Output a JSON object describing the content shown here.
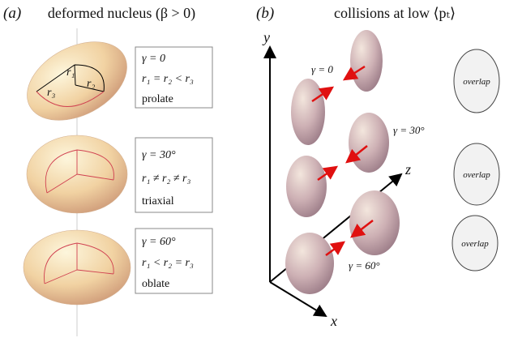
{
  "panel_a": {
    "label": "(a)",
    "title": "deformed nucleus (β > 0)",
    "radius_labels": [
      "r₁",
      "r₂",
      "r₃"
    ],
    "cases": [
      {
        "gamma": "γ = 0",
        "relation": "r₁ = r₂ < r₃",
        "shape": "prolate"
      },
      {
        "gamma": "γ = 30°",
        "relation": "r₁ ≠ r₂ ≠ r₃",
        "shape": "triaxial"
      },
      {
        "gamma": "γ = 60°",
        "relation": "r₁ < r₂ = r₃",
        "shape": "oblate"
      }
    ]
  },
  "panel_b": {
    "label": "(b)",
    "title": "collisions at low ⟨pₜ⟩",
    "axes": {
      "y": "y",
      "z": "z",
      "x": "x"
    },
    "collisions": [
      "γ = 0",
      "γ = 30°",
      "γ = 60°"
    ],
    "overlaps": [
      "overlap",
      "overlap",
      "overlap"
    ]
  }
}
